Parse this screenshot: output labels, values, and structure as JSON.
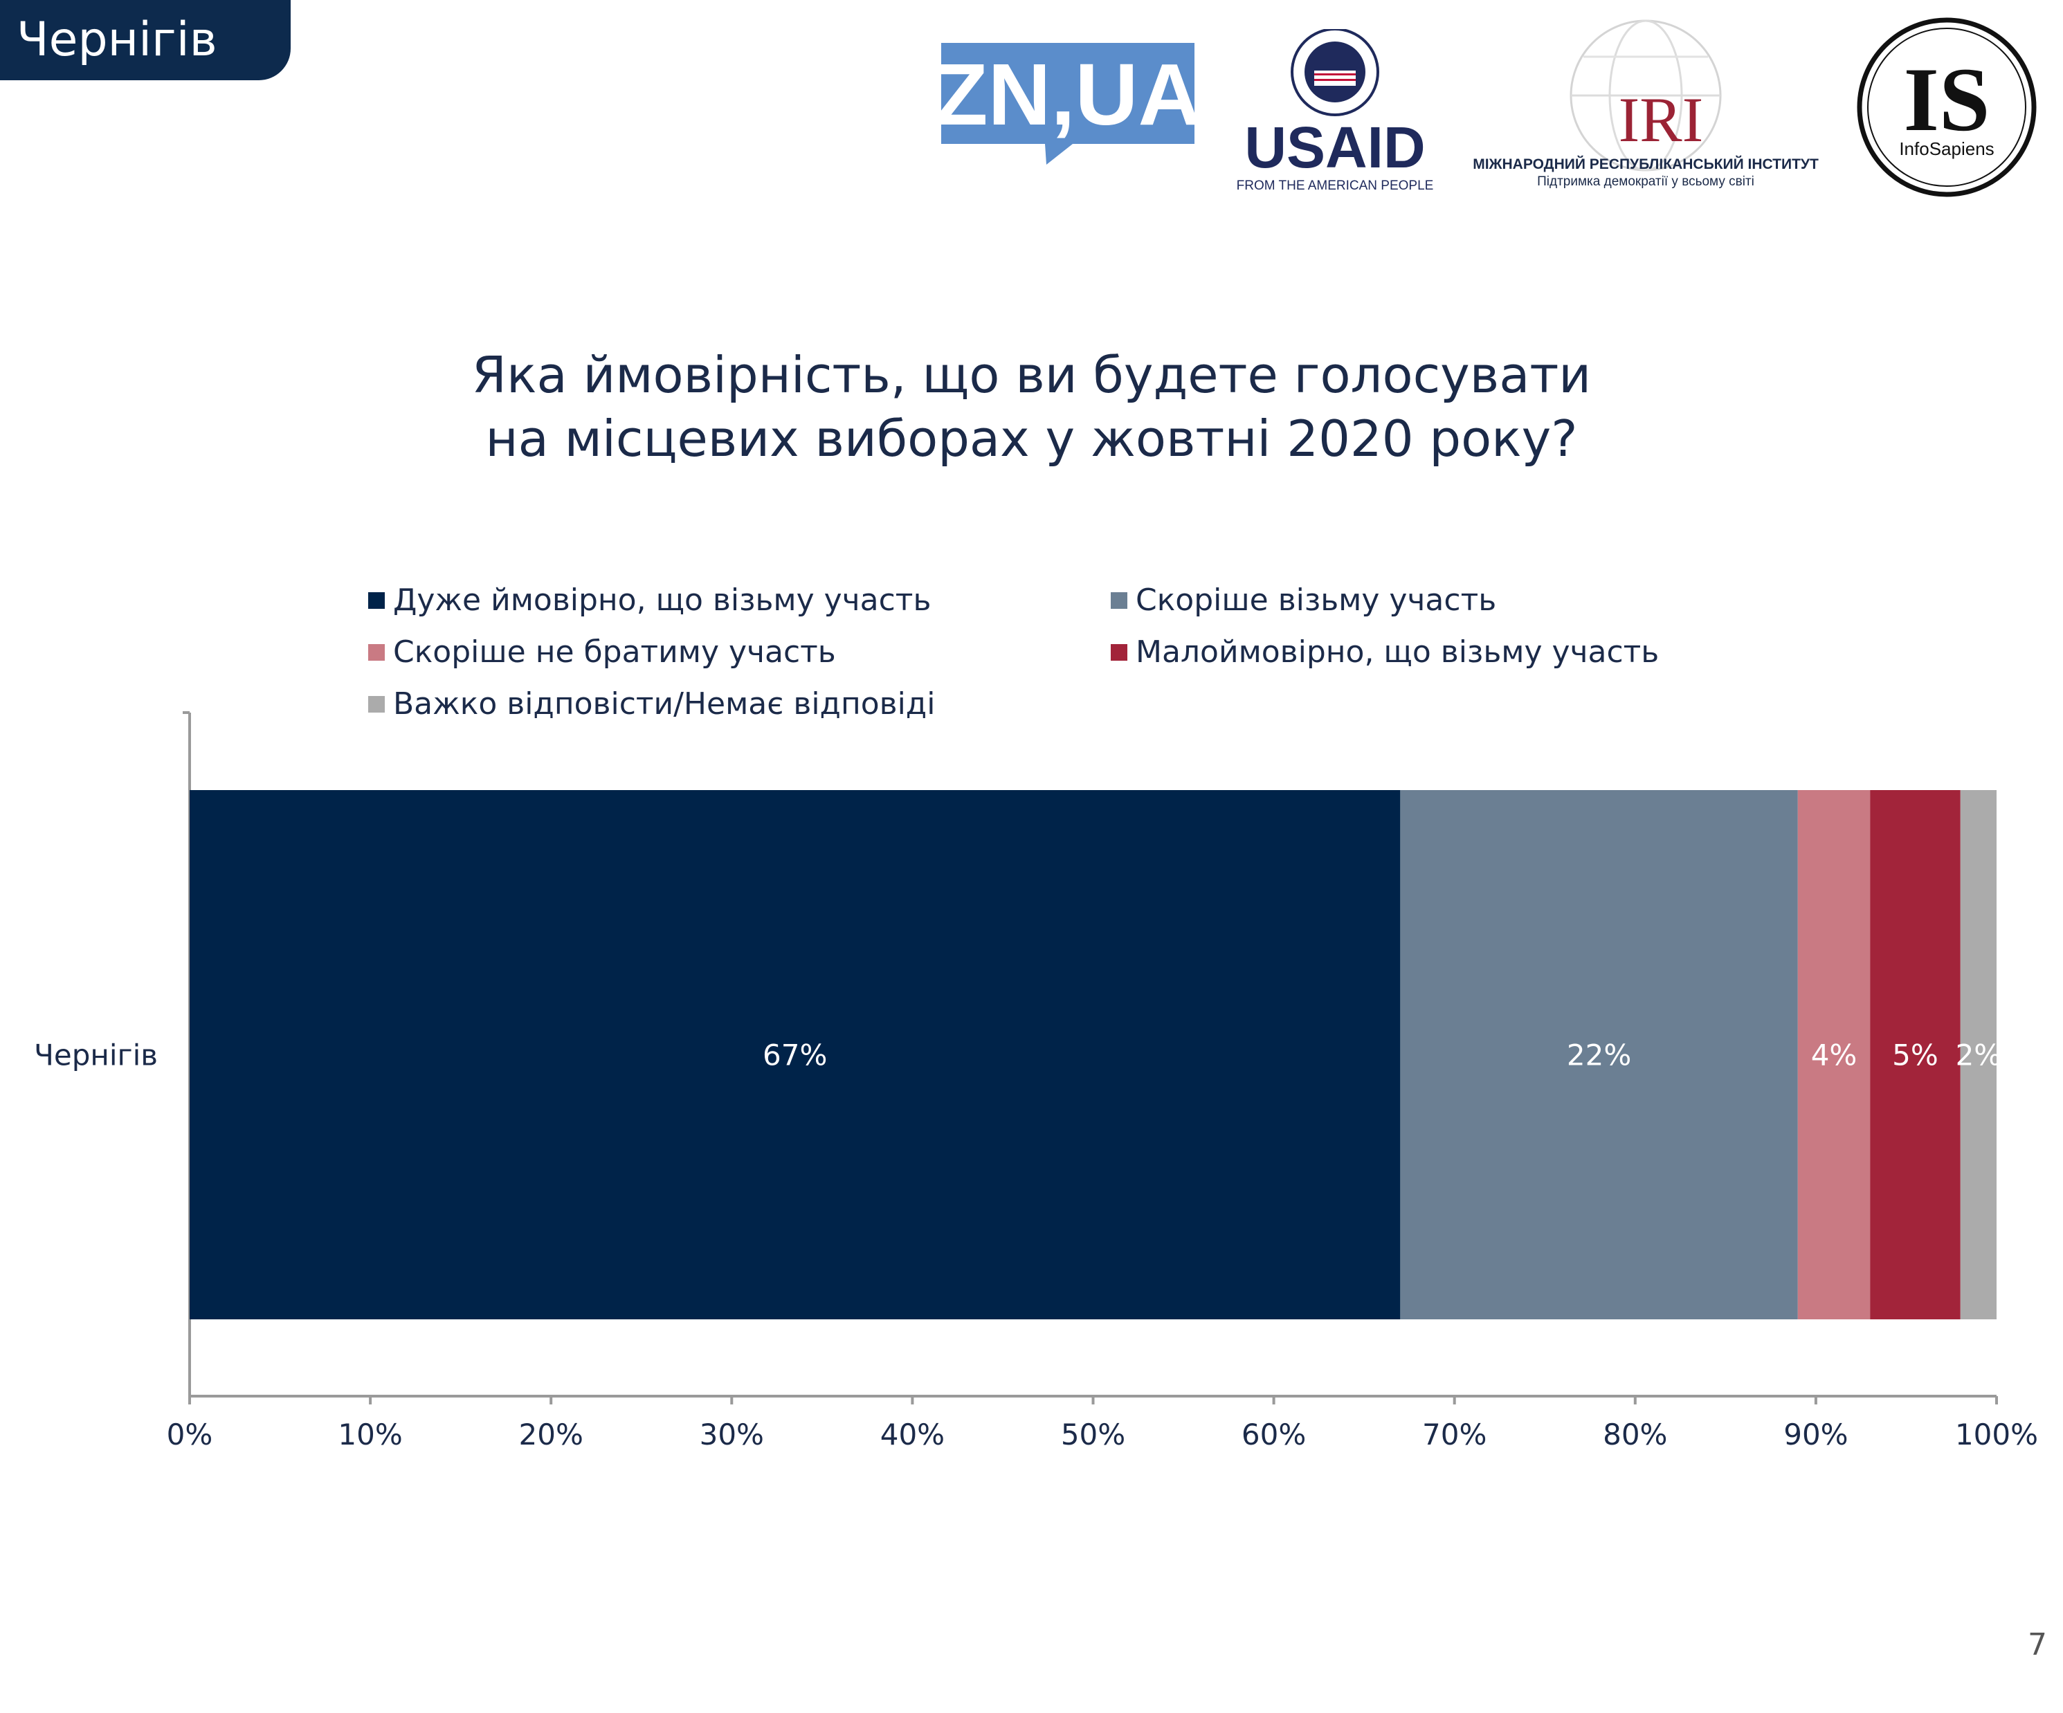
{
  "header": {
    "city_tab": "Чернігів",
    "page_number": "7"
  },
  "logos": {
    "znua": "ZN,UA",
    "usaid": "USAID",
    "usaid_tagline": "FROM THE AMERICAN PEOPLE",
    "iri": "IRI",
    "iri_name": "МІЖНАРОДНИЙ РЕСПУБЛІКАНСЬКИЙ ІНСТИТУТ",
    "iri_tagline": "Підтримка демократії у всьому світі",
    "infosapiens": "IS",
    "infosapiens_name": "InfoSapiens"
  },
  "colors": {
    "very_likely": "#002349",
    "rather_will": "#6b7f93",
    "rather_not": "#c97a83",
    "unlikely": "#a2243a",
    "hard_to_say": "#ababab",
    "znua_brand": "#5b8dcb",
    "usaid_blue": "#1f2a5c",
    "usaid_red": "#c2113a",
    "iri_red": "#9b2335"
  },
  "chart_data": {
    "type": "bar",
    "orientation": "horizontal",
    "stacked": true,
    "title": "Яка ймовірність, що ви будете голосувати на місцевих виборах у жовтні 2020 року?",
    "title_lines": [
      "Яка ймовірність, що ви будете голосувати",
      "на місцевих виборах у жовтні 2020 року?"
    ],
    "categories": [
      "Чернігів"
    ],
    "series": [
      {
        "name": "Дуже ймовірно, що візьму участь",
        "values": [
          67
        ],
        "labels": [
          "67%"
        ]
      },
      {
        "name": "Скоріше візьму участь",
        "values": [
          22
        ],
        "labels": [
          "22%"
        ]
      },
      {
        "name": "Скоріше не братиму участь",
        "values": [
          4
        ],
        "labels": [
          "4%"
        ]
      },
      {
        "name": "Малоймовірно, що візьму участь",
        "values": [
          5
        ],
        "labels": [
          "5%"
        ]
      },
      {
        "name": "Важко відповісти/Немає відповіді",
        "values": [
          2
        ],
        "labels": [
          "2%"
        ]
      }
    ],
    "xlim": [
      0,
      100
    ],
    "x_ticks": [
      "0%",
      "10%",
      "20%",
      "30%",
      "40%",
      "50%",
      "60%",
      "70%",
      "80%",
      "90%",
      "100%"
    ],
    "legend_position": "top",
    "grid": false
  }
}
